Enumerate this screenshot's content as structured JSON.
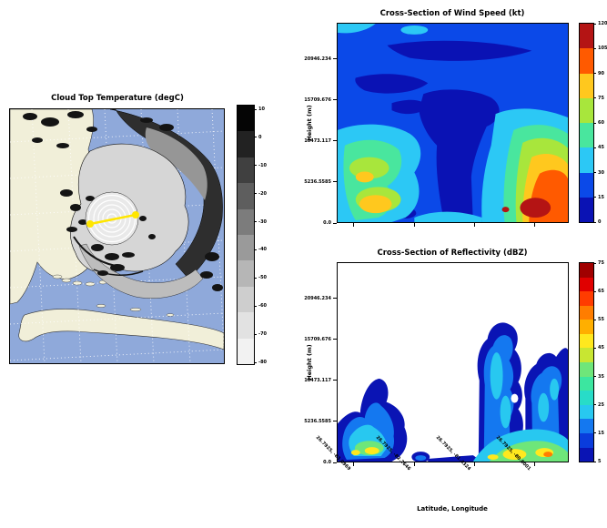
{
  "map": {
    "title": "Cloud Top Temperature (degC)",
    "colorbar": {
      "tick_labels": [
        "10",
        "0",
        "-10",
        "-20",
        "-30",
        "-40",
        "-50",
        "-60",
        "-70",
        "-80"
      ],
      "colors": [
        "#050505",
        "#222222",
        "#404040",
        "#5e5e5e",
        "#7c7c7c",
        "#9a9a9a",
        "#b6b6b6",
        "#cecece",
        "#e2e2e2",
        "#f2f2f2"
      ]
    },
    "colors": {
      "water": "#8fa9da",
      "land": "#f1efd9",
      "cross_section_line": "#ffe600",
      "cloud_dark": "#2e2e2e",
      "cloud_light": "#d6d6d6",
      "eye_rings": "#ffffff"
    }
  },
  "wind": {
    "title": "Cross-Section of Wind Speed (kt)",
    "ylabel": "Height (m)",
    "ytick_labels": [
      "20946.234",
      "15709.676",
      "10473.117",
      "5236.5585",
      "0.0"
    ],
    "colorbar": {
      "tick_labels": [
        "120",
        "105",
        "90",
        "75",
        "60",
        "45",
        "30",
        "15",
        "0"
      ],
      "colors": [
        "#b41414",
        "#ff5a00",
        "#ffc81e",
        "#a8e63c",
        "#49e69e",
        "#2cc8f5",
        "#0b49e8",
        "#0a12b4"
      ]
    }
  },
  "reflectivity": {
    "title": "Cross-Section of Reflectivity (dBZ)",
    "ylabel": "Height (m)",
    "xlabel": "Latitude, Longitude",
    "ytick_labels": [
      "20946.234",
      "15709.676",
      "10473.117",
      "5236.5585",
      "0.0"
    ],
    "xtick_labels": [
      "26.7925, -83.0969",
      "26.7925, -82.2646",
      "26.7925, -81.4324",
      "26.7925, -80.6001"
    ],
    "colorbar": {
      "tick_labels": [
        "75",
        "65",
        "55",
        "45",
        "35",
        "25",
        "15",
        "5"
      ],
      "colors": [
        "#a00000",
        "#e00000",
        "#ff3c00",
        "#ff7d00",
        "#ffaf00",
        "#ffe81e",
        "#c8e632",
        "#6ee67a",
        "#3ce6a0",
        "#28dcc8",
        "#28c8f0",
        "#1478f0",
        "#0a3cdc",
        "#0a14b4"
      ]
    }
  },
  "chart_data": [
    {
      "type": "heatmap",
      "title": "Cloud Top Temperature (degC)",
      "units": "degC",
      "colorbar_ticks": [
        10,
        0,
        -10,
        -20,
        -30,
        -40,
        -50,
        -60,
        -70,
        -80
      ],
      "colormap": "grayscale, warm tops dark to cold tops white",
      "overlays": {
        "coastlines": [
          "Florida",
          "Cuba",
          "Florida Keys"
        ],
        "graticule": "white dotted lat-lon grid",
        "cross_section_line": "yellow segment with dot endpoints across hurricane eye",
        "eyewall_rings": "concentric white circles at storm center"
      }
    },
    {
      "type": "heatmap",
      "title": "Cross-Section of Wind Speed (kt)",
      "ylabel": "Height (m)",
      "y_ticks": [
        0.0,
        5236.5585,
        10473.117,
        15709.676,
        20946.234
      ],
      "colorbar_ticks": [
        0,
        15,
        30,
        45,
        60,
        75,
        90,
        105,
        120
      ],
      "units": "kt",
      "features": [
        "15-30 kt blue field over most of the section aloft",
        "0-15 kt calm column mid-section descending to the surface (eye)",
        "45-90 kt near-surface maximum on the left side",
        "105-120 kt eyewall wind maximum near the surface on the right"
      ]
    },
    {
      "type": "heatmap",
      "title": "Cross-Section of Reflectivity (dBZ)",
      "xlabel": "Latitude, Longitude",
      "ylabel": "Height (m)",
      "x_ticks": [
        "26.7925, -83.0969",
        "26.7925, -82.2646",
        "26.7925, -81.4324",
        "26.7925, -80.6001"
      ],
      "y_ticks": [
        0.0,
        5236.5585,
        10473.117,
        15709.676,
        20946.234
      ],
      "colorbar_ticks": [
        5,
        15,
        25,
        35,
        45,
        55,
        65,
        75
      ],
      "units": "dBZ",
      "features": [
        "echo-free white region aloft",
        "shallow 5-45 dBZ cell on the left below ~6000 m",
        "deep convective towers on the right reaching ~15000 m",
        "35-55 dBZ cores near the surface on the right (eyewall)"
      ]
    }
  ]
}
